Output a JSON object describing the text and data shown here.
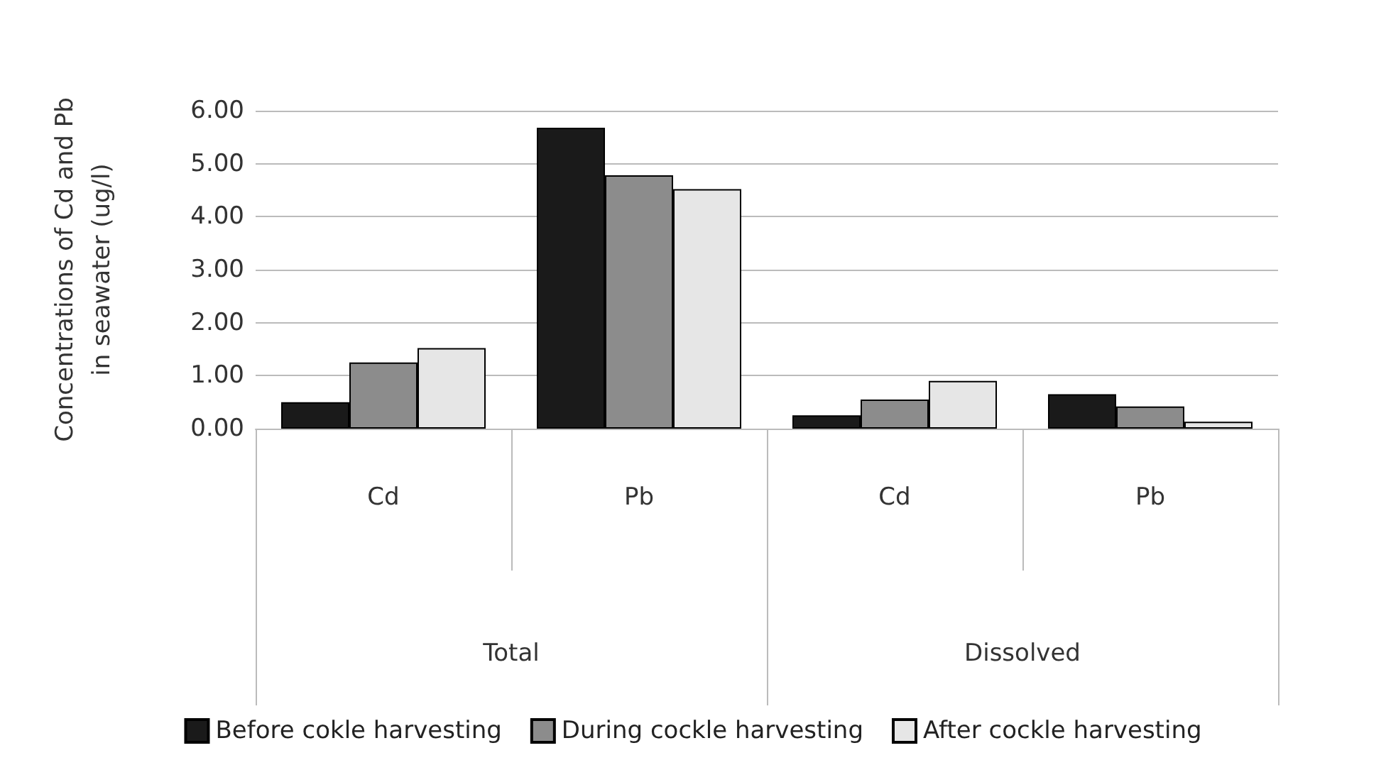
{
  "chart_data": {
    "type": "bar",
    "ylabel": "Concentrations of Cd and Pb\nin seawater (ug/l)",
    "categories": [
      "Cd",
      "Pb",
      "Cd",
      "Pb"
    ],
    "annotations": [
      "Total",
      "Dissolved"
    ],
    "series": [
      {
        "name": "Before cokle harvesting",
        "color": "#1a1a1a",
        "values": [
          0.5,
          5.68,
          0.25,
          0.65
        ]
      },
      {
        "name": "During cockle harvesting",
        "color": "#8c8c8c",
        "values": [
          1.25,
          4.78,
          0.55,
          0.42
        ]
      },
      {
        "name": "After cockle harvesting",
        "color": "#e6e6e6",
        "values": [
          1.52,
          4.52,
          0.9,
          0.13
        ]
      }
    ],
    "ylim": [
      0,
      6
    ],
    "yticks": [
      {
        "value": 0,
        "label": "0.00"
      },
      {
        "value": 1,
        "label": "1.00"
      },
      {
        "value": 2,
        "label": "2.00"
      },
      {
        "value": 3,
        "label": "3.00"
      },
      {
        "value": 4,
        "label": "4.00"
      },
      {
        "value": 5,
        "label": "5.00"
      },
      {
        "value": 6,
        "label": "6.00"
      }
    ],
    "grid": "y",
    "legend": "bottom"
  }
}
